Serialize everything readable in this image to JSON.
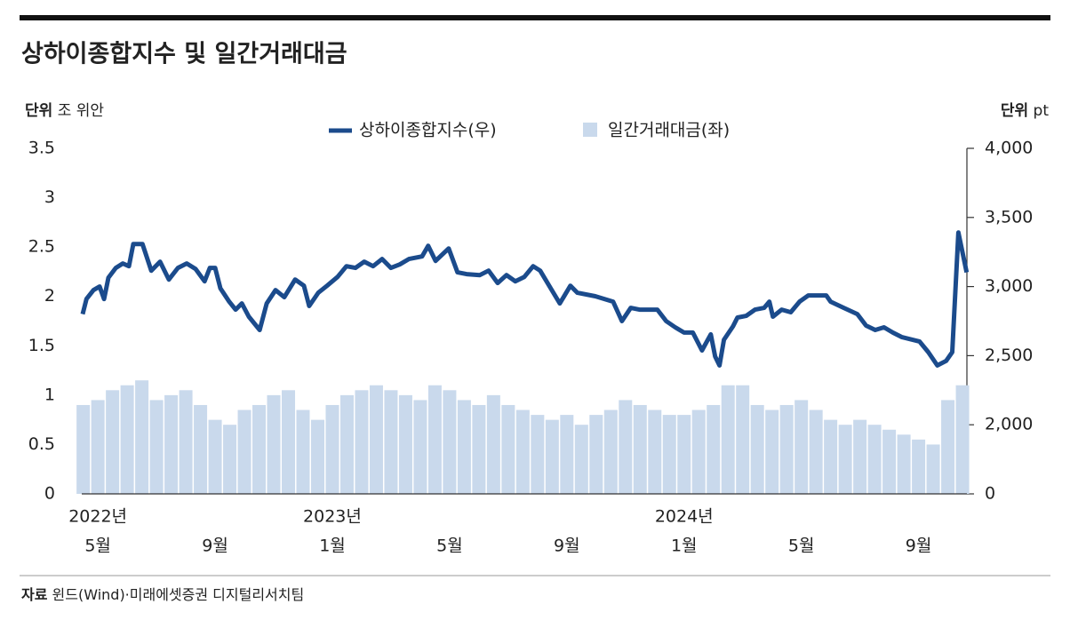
{
  "chart_data": {
    "type": "bar-line",
    "title": "상하이종합지수 및 일간거래대금",
    "unit_left": {
      "label": "단위",
      "unit": "조 위안"
    },
    "unit_right": {
      "label": "단위",
      "unit": "pt"
    },
    "source": {
      "label": "자료",
      "text": "윈드(Wind)·미래에셋증권 디지털리서치팀"
    },
    "xlim": [
      -0.55,
      29.65
    ],
    "xticks": [
      {
        "value": 0,
        "label": "5월"
      },
      {
        "value": 4,
        "label": "9월"
      },
      {
        "value": 8,
        "label": "1월"
      },
      {
        "value": 12,
        "label": "5월"
      },
      {
        "value": 16,
        "label": "9월"
      },
      {
        "value": 20,
        "label": "1월"
      },
      {
        "value": 24,
        "label": "5월"
      },
      {
        "value": 28,
        "label": "9월"
      }
    ],
    "year_labels": [
      {
        "value": 0,
        "label": "2022년"
      },
      {
        "value": 8,
        "label": "2023년"
      },
      {
        "value": 20,
        "label": "2024년"
      }
    ],
    "ylim": [
      0,
      3.5
    ],
    "yticks": [
      0,
      0.5,
      1,
      1.5,
      2,
      2.5,
      3,
      3.5
    ],
    "y2lim": [
      1500,
      4000
    ],
    "y2_break": true,
    "y2ticks": [
      0,
      {
        "value": 2000,
        "label": "2,000"
      },
      {
        "value": 2500,
        "label": "2,500"
      },
      {
        "value": 3000,
        "label": "3,000"
      },
      {
        "value": 3500,
        "label": "3,500"
      },
      {
        "value": 4000,
        "label": "4,000"
      }
    ],
    "series": [
      {
        "name": "상하이종합지수(우)",
        "type": "line",
        "axis": "y2",
        "color": "#1b4b8c",
        "x": [
          -0.52,
          -0.39,
          -0.15,
          0.06,
          0.21,
          0.36,
          0.61,
          0.85,
          1.06,
          1.21,
          1.52,
          1.82,
          2.12,
          2.42,
          2.73,
          3.03,
          3.33,
          3.64,
          3.82,
          4,
          4.18,
          4.48,
          4.7,
          4.91,
          5.15,
          5.52,
          5.76,
          6.06,
          6.36,
          6.73,
          7.03,
          7.21,
          7.52,
          7.82,
          8.18,
          8.48,
          8.79,
          9.09,
          9.39,
          9.7,
          10,
          10.3,
          10.61,
          11.06,
          11.27,
          11.52,
          11.97,
          12.27,
          12.58,
          13.03,
          13.33,
          13.64,
          13.94,
          14.24,
          14.55,
          14.85,
          15.09,
          15.45,
          15.76,
          16.12,
          16.36,
          16.97,
          17.58,
          17.88,
          18.18,
          18.48,
          19.09,
          19.39,
          19.7,
          20,
          20.3,
          20.61,
          20.91,
          21.06,
          21.21,
          21.36,
          21.67,
          21.82,
          22.12,
          22.42,
          22.73,
          22.91,
          23.03,
          23.33,
          23.64,
          23.94,
          24.24,
          24.85,
          25,
          25.45,
          25.91,
          26.21,
          26.52,
          26.82,
          27.12,
          27.42,
          28.03,
          28.33,
          28.64,
          28.94,
          29.15,
          29.36,
          29.64
        ],
        "values": [
          2801,
          2910,
          2974,
          3000,
          2910,
          3064,
          3135,
          3167,
          3147,
          3308,
          3308,
          3115,
          3180,
          3051,
          3135,
          3167,
          3128,
          3038,
          3135,
          3135,
          2987,
          2891,
          2833,
          2878,
          2782,
          2686,
          2878,
          2974,
          2923,
          3051,
          3006,
          2859,
          2955,
          3006,
          3070,
          3147,
          3135,
          3180,
          3147,
          3199,
          3135,
          3160,
          3199,
          3218,
          3295,
          3186,
          3276,
          3103,
          3090,
          3083,
          3115,
          3026,
          3083,
          3038,
          3070,
          3147,
          3115,
          2987,
          2878,
          3006,
          2955,
          2930,
          2891,
          2750,
          2846,
          2833,
          2833,
          2750,
          2705,
          2667,
          2667,
          2538,
          2654,
          2494,
          2429,
          2615,
          2712,
          2776,
          2788,
          2833,
          2846,
          2891,
          2782,
          2833,
          2814,
          2891,
          2936,
          2936,
          2891,
          2846,
          2801,
          2718,
          2686,
          2705,
          2667,
          2635,
          2603,
          2526,
          2429,
          2462,
          2526,
          3391,
          3103
        ]
      },
      {
        "name": "일간거래대금(좌)",
        "type": "bar",
        "axis": "y",
        "color": "#c9d9ec",
        "x": [
          -0.5,
          0,
          0.5,
          1,
          1.5,
          2,
          2.5,
          3,
          3.5,
          4,
          4.5,
          5,
          5.5,
          6,
          6.5,
          7,
          7.5,
          8,
          8.5,
          9,
          9.5,
          10,
          10.5,
          11,
          11.5,
          12,
          12.5,
          13,
          13.5,
          14,
          14.5,
          15,
          15.5,
          16,
          16.5,
          17,
          17.5,
          18,
          18.5,
          19,
          19.5,
          20,
          20.5,
          21,
          21.5,
          22,
          22.5,
          23,
          23.5,
          24,
          24.5,
          25,
          25.5,
          26,
          26.5,
          27,
          27.5,
          28,
          28.5,
          29,
          29.5
        ],
        "values": [
          0.9,
          0.95,
          1.05,
          1.1,
          1.15,
          0.95,
          1.0,
          1.05,
          0.9,
          0.75,
          0.7,
          0.85,
          0.9,
          1.0,
          1.05,
          0.85,
          0.75,
          0.9,
          1.0,
          1.05,
          1.1,
          1.05,
          1.0,
          0.95,
          1.1,
          1.05,
          0.95,
          0.9,
          1.0,
          0.9,
          0.85,
          0.8,
          0.75,
          0.8,
          0.7,
          0.8,
          0.85,
          0.95,
          0.9,
          0.85,
          0.8,
          0.8,
          0.85,
          0.9,
          1.1,
          1.1,
          0.9,
          0.85,
          0.9,
          0.95,
          0.85,
          0.75,
          0.7,
          0.75,
          0.7,
          0.65,
          0.6,
          0.55,
          0.5,
          0.95,
          1.1
        ]
      }
    ]
  }
}
